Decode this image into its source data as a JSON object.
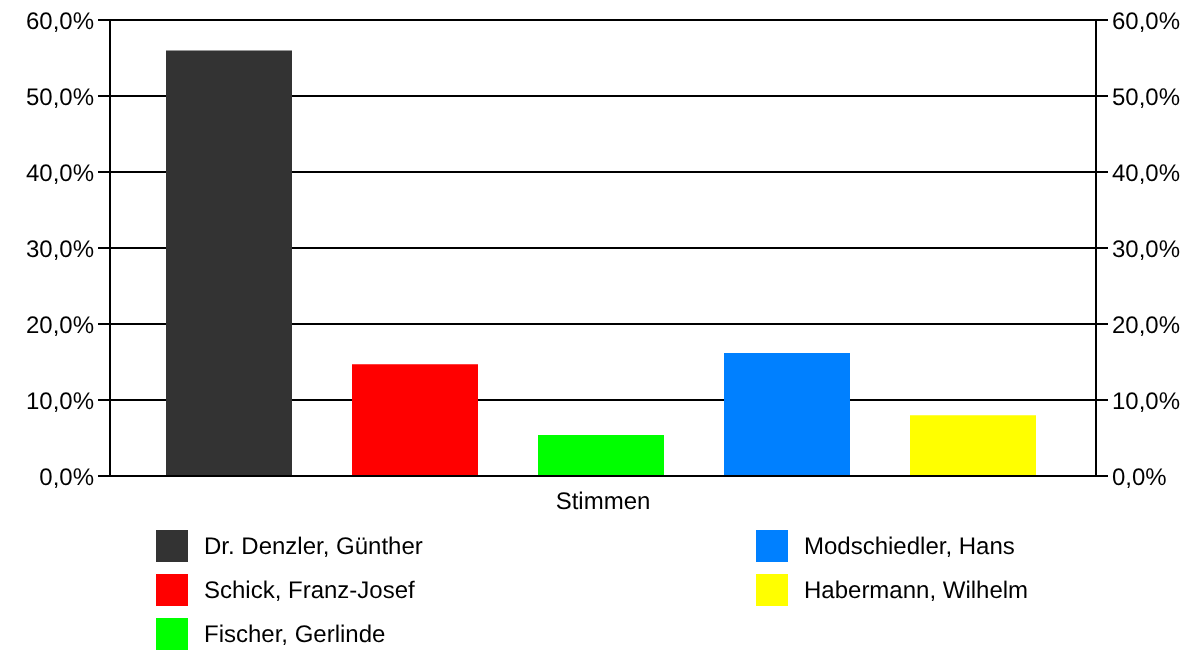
{
  "chart_data": {
    "type": "bar",
    "categories": [
      "Stimmen"
    ],
    "series": [
      {
        "name": "Dr. Denzler, Günther",
        "color": "#333333",
        "values": [
          56.0
        ]
      },
      {
        "name": "Schick, Franz-Josef",
        "color": "#ff0000",
        "values": [
          14.7
        ]
      },
      {
        "name": "Fischer, Gerlinde",
        "color": "#00ff00",
        "values": [
          5.4
        ]
      },
      {
        "name": "Modschiedler, Hans",
        "color": "#0080ff",
        "values": [
          16.2
        ]
      },
      {
        "name": "Habermann, Wilhelm",
        "color": "#ffff00",
        "values": [
          8.0
        ]
      }
    ],
    "ylim": [
      0,
      60
    ],
    "yticks": [
      {
        "value": 0,
        "label": "0,0%"
      },
      {
        "value": 10,
        "label": "10,0%"
      },
      {
        "value": 20,
        "label": "20,0%"
      },
      {
        "value": 30,
        "label": "30,0%"
      },
      {
        "value": 40,
        "label": "40,0%"
      },
      {
        "value": 50,
        "label": "50,0%"
      },
      {
        "value": 60,
        "label": "60,0%"
      }
    ],
    "grid": "y",
    "legend": "bottom"
  }
}
